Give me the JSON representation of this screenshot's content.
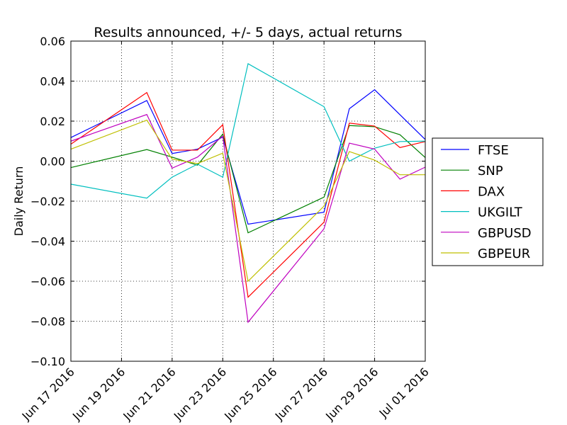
{
  "chart_data": {
    "type": "line",
    "title": "Results announced, +/- 5 days, actual returns",
    "xlabel": "",
    "ylabel": "Daily Return",
    "x": [
      "2016-06-17",
      "2016-06-20",
      "2016-06-21",
      "2016-06-22",
      "2016-06-23",
      "2016-06-24",
      "2016-06-27",
      "2016-06-28",
      "2016-06-29",
      "2016-06-30",
      "2016-07-01"
    ],
    "xticks": [
      "2016-06-17",
      "2016-06-19",
      "2016-06-21",
      "2016-06-23",
      "2016-06-25",
      "2016-06-27",
      "2016-06-29",
      "2016-07-01"
    ],
    "xtick_labels": [
      "Jun 17 2016",
      "Jun 19 2016",
      "Jun 21 2016",
      "Jun 23 2016",
      "Jun 25 2016",
      "Jun 27 2016",
      "Jun 29 2016",
      "Jul 01 2016"
    ],
    "xlim": [
      "2016-06-17",
      "2016-07-01"
    ],
    "ylim": [
      -0.1,
      0.06
    ],
    "yticks": [
      -0.1,
      -0.08,
      -0.06,
      -0.04,
      -0.02,
      0.0,
      0.02,
      0.04,
      0.06
    ],
    "ytick_labels": [
      "−0.10",
      "−0.08",
      "−0.06",
      "−0.04",
      "−0.02",
      "0.00",
      "0.02",
      "0.04",
      "0.06"
    ],
    "grid": true,
    "legend_position": "outside-right",
    "series": [
      {
        "name": "FTSE",
        "color": "#0000ff",
        "values": [
          0.0118,
          0.0303,
          0.0038,
          0.006,
          0.012,
          -0.0315,
          -0.0255,
          0.0262,
          0.0357,
          0.0232,
          0.0108
        ]
      },
      {
        "name": "SNP",
        "color": "#008000",
        "values": [
          -0.0032,
          0.0058,
          0.002,
          -0.002,
          0.0135,
          -0.0358,
          -0.018,
          0.0178,
          0.0172,
          0.0132,
          0.0018
        ]
      },
      {
        "name": "DAX",
        "color": "#ff0000",
        "values": [
          0.0085,
          0.0343,
          0.0055,
          0.0055,
          0.0182,
          -0.068,
          -0.0305,
          0.019,
          0.0175,
          0.0068,
          0.0098
        ]
      },
      {
        "name": "UKGILT",
        "color": "#00bfbf",
        "values": [
          -0.0115,
          -0.0185,
          -0.008,
          -0.0015,
          -0.008,
          0.0487,
          0.0272,
          0.0,
          0.0065,
          0.0098,
          0.01
        ]
      },
      {
        "name": "GBPUSD",
        "color": "#bf00bf",
        "values": [
          0.01,
          0.0233,
          -0.0035,
          0.002,
          0.0125,
          -0.0805,
          -0.0338,
          0.009,
          0.006,
          -0.009,
          -0.003
        ]
      },
      {
        "name": "GBPEUR",
        "color": "#bfbf00",
        "values": [
          0.006,
          0.0205,
          0.001,
          -0.0012,
          0.004,
          -0.06,
          -0.0225,
          0.0048,
          0.0005,
          -0.0068,
          -0.0068
        ]
      }
    ]
  }
}
